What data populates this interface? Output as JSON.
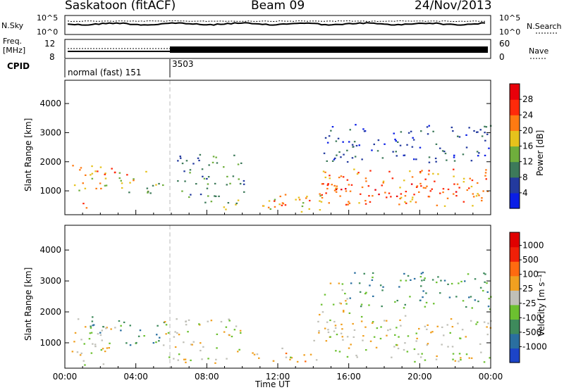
{
  "header": {
    "station": "Saskatoon (fitACF)",
    "beam": "Beam 09",
    "date": "24/Nov/2013"
  },
  "noise_panel": {
    "left_label": "N.Sky",
    "right_label": "N.Search",
    "left_ticks": [
      "10^5",
      "10^0"
    ],
    "right_ticks": [
      "10^5",
      "10^0"
    ]
  },
  "freq_panel": {
    "left_label_1": "Freq.",
    "left_label_2": "[MHz]",
    "left_ticks": [
      "12",
      "8"
    ],
    "right_label": "Nave",
    "right_ticks": [
      "60",
      "0"
    ]
  },
  "cpid": {
    "label": "CPID",
    "segments": [
      {
        "start": "00:00",
        "name": "normal (fast) 151"
      },
      {
        "start": "06:00",
        "name": "3503"
      }
    ]
  },
  "chart_data": [
    {
      "type": "heatmap",
      "name": "Power",
      "xlabel": "Time UT",
      "ylabel": "Slant Range [km]",
      "x_ticks": [
        "00:00",
        "04:00",
        "08:00",
        "12:00",
        "16:00",
        "20:00",
        "00:00"
      ],
      "y_ticks": [
        1000,
        2000,
        3000,
        4000
      ],
      "ylim": [
        180,
        4800
      ],
      "xlim_hours": [
        0,
        24
      ],
      "colorbar": {
        "label": "Power [dB]",
        "ticks": [
          "4",
          "8",
          "12",
          "16",
          "20",
          "24",
          "28"
        ],
        "colors": [
          "#0a1ee6",
          "#233a9e",
          "#3d7a5a",
          "#6fae3c",
          "#e6c21c",
          "#ff7a12",
          "#ff2a0a",
          "#e8000a"
        ]
      },
      "regions": [
        {
          "t0": 0.2,
          "t1": 1.3,
          "r0": 400,
          "r1": 600,
          "level": 6
        },
        {
          "t0": 0.3,
          "t1": 2.8,
          "r0": 1000,
          "r1": 1900,
          "level": 4
        },
        {
          "t0": 1.6,
          "t1": 2.8,
          "r0": 1100,
          "r1": 1800,
          "level": 6
        },
        {
          "t0": 2.9,
          "t1": 5.5,
          "r0": 900,
          "r1": 1700,
          "level": 3
        },
        {
          "t0": 3.3,
          "t1": 4.1,
          "r0": 1300,
          "r1": 1700,
          "level": 5
        },
        {
          "t0": 6.3,
          "t1": 10.2,
          "r0": 800,
          "r1": 2300,
          "level": 2
        },
        {
          "t0": 7.5,
          "t1": 10.0,
          "r0": 300,
          "r1": 700,
          "level": 3
        },
        {
          "t0": 10.3,
          "t1": 14.5,
          "r0": 300,
          "r1": 900,
          "level": 4
        },
        {
          "t0": 11.0,
          "t1": 13.8,
          "r0": 500,
          "r1": 800,
          "level": 6
        },
        {
          "t0": 14.2,
          "t1": 24.0,
          "r0": 500,
          "r1": 1800,
          "level": 5
        },
        {
          "t0": 14.5,
          "t1": 23.5,
          "r0": 800,
          "r1": 1300,
          "level": 6
        },
        {
          "t0": 14.5,
          "t1": 24.0,
          "r0": 2000,
          "r1": 3300,
          "level": 1
        }
      ]
    },
    {
      "type": "heatmap",
      "name": "Velocity",
      "xlabel": "Time UT",
      "ylabel": "Slant Range [km]",
      "x_ticks": [
        "00:00",
        "04:00",
        "08:00",
        "12:00",
        "16:00",
        "20:00",
        "00:00"
      ],
      "y_ticks": [
        1000,
        2000,
        3000,
        4000
      ],
      "ylim": [
        180,
        4800
      ],
      "xlim_hours": [
        0,
        24
      ],
      "colorbar": {
        "label": "Velocity [m s⁻¹]",
        "ticks": [
          "1000",
          "500",
          "100",
          "25",
          "-25",
          "-100",
          "-500",
          "-1000"
        ],
        "colors": [
          "#1c44c8",
          "#2a6fa0",
          "#3e8a5c",
          "#6cc030",
          "#c0c0b8",
          "#f0a020",
          "#ff6a10",
          "#f02008",
          "#e00000"
        ]
      },
      "regions": [
        {
          "t0": 0.2,
          "t1": 2.8,
          "r0": 300,
          "r1": 1800,
          "level": 4
        },
        {
          "t0": 1.0,
          "t1": 2.5,
          "r0": 1000,
          "r1": 1900,
          "level": 2
        },
        {
          "t0": 3.0,
          "t1": 5.6,
          "r0": 900,
          "r1": 1800,
          "level": 2
        },
        {
          "t0": 5.5,
          "t1": 10.0,
          "r0": 300,
          "r1": 1800,
          "level": 4
        },
        {
          "t0": 10.5,
          "t1": 14.0,
          "r0": 400,
          "r1": 900,
          "level": 5
        },
        {
          "t0": 12.3,
          "t1": 13.2,
          "r0": 550,
          "r1": 750,
          "level": 3
        },
        {
          "t0": 14.0,
          "t1": 24.0,
          "r0": 400,
          "r1": 1900,
          "level": 4
        },
        {
          "t0": 14.0,
          "t1": 16.0,
          "r0": 1900,
          "r1": 3000,
          "level": 4
        },
        {
          "t0": 16.0,
          "t1": 24.0,
          "r0": 2100,
          "r1": 3300,
          "level": 2
        }
      ]
    }
  ]
}
